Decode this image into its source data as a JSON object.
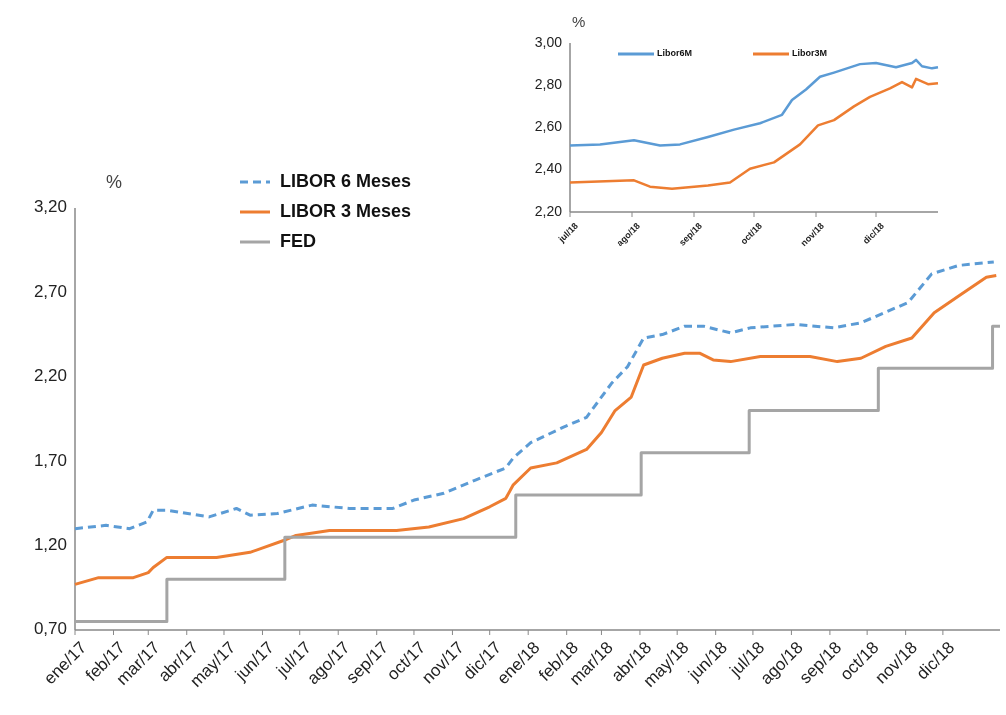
{
  "chart_data": [
    {
      "type": "line",
      "ylabel": "%",
      "xlim": [
        "2017-01-01",
        "2019-01-16"
      ],
      "ylim": [
        0.7,
        3.2
      ],
      "yticks": [
        {
          "value": 0.7,
          "label": "0,70"
        },
        {
          "value": 1.2,
          "label": "1,20"
        },
        {
          "value": 1.7,
          "label": "1,70"
        },
        {
          "value": 2.2,
          "label": "2,20"
        },
        {
          "value": 2.7,
          "label": "2,70"
        },
        {
          "value": 3.2,
          "label": "3,20"
        }
      ],
      "xticks": [
        {
          "value": "2017-01",
          "label": "ene/17"
        },
        {
          "value": "2017-02",
          "label": "feb/17"
        },
        {
          "value": "2017-03",
          "label": "mar/17"
        },
        {
          "value": "2017-04",
          "label": "abr/17"
        },
        {
          "value": "2017-05",
          "label": "may/17"
        },
        {
          "value": "2017-06",
          "label": "jun/17"
        },
        {
          "value": "2017-07",
          "label": "jul/17"
        },
        {
          "value": "2017-08",
          "label": "ago/17"
        },
        {
          "value": "2017-09",
          "label": "sep/17"
        },
        {
          "value": "2017-10",
          "label": "oct/17"
        },
        {
          "value": "2017-11",
          "label": "nov/17"
        },
        {
          "value": "2017-12",
          "label": "dic/17"
        },
        {
          "value": "2018-01",
          "label": "ene/18"
        },
        {
          "value": "2018-02",
          "label": "feb/18"
        },
        {
          "value": "2018-03",
          "label": "mar/18"
        },
        {
          "value": "2018-04",
          "label": "abr/18"
        },
        {
          "value": "2018-05",
          "label": "may/18"
        },
        {
          "value": "2018-06",
          "label": "jun/18"
        },
        {
          "value": "2018-07",
          "label": "jul/18"
        },
        {
          "value": "2018-08",
          "label": "ago/18"
        },
        {
          "value": "2018-09",
          "label": "sep/18"
        },
        {
          "value": "2018-10",
          "label": "oct/18"
        },
        {
          "value": "2018-11",
          "label": "nov/18"
        },
        {
          "value": "2018-12",
          "label": "dic/18"
        }
      ],
      "grid": false,
      "legend": "top",
      "marker": "none",
      "series": [
        {
          "name": "LIBOR 6 Meses",
          "color": "#5b9bd5",
          "line_style": "dashed",
          "x": [
            "2017-01-01",
            "2017-01-26",
            "2017-02-14",
            "2017-02-28",
            "2017-03-05",
            "2017-03-16",
            "2017-04-19",
            "2017-05-11",
            "2017-05-22",
            "2017-06-13",
            "2017-07-11",
            "2017-08-10",
            "2017-09-14",
            "2017-10-01",
            "2017-10-25",
            "2017-11-20",
            "2017-12-14",
            "2017-12-20",
            "2018-01-03",
            "2018-01-29",
            "2018-02-17",
            "2018-03-09",
            "2018-03-22",
            "2018-04-04",
            "2018-04-19",
            "2018-05-07",
            "2018-05-22",
            "2018-06-13",
            "2018-06-29",
            "2018-08-04",
            "2018-09-04",
            "2018-09-26",
            "2018-11-03",
            "2018-11-22",
            "2018-12-14",
            "2019-01-11"
          ],
          "values": [
            1.3,
            1.32,
            1.3,
            1.34,
            1.41,
            1.41,
            1.37,
            1.42,
            1.38,
            1.39,
            1.44,
            1.42,
            1.42,
            1.47,
            1.51,
            1.59,
            1.66,
            1.72,
            1.81,
            1.9,
            1.96,
            2.16,
            2.26,
            2.43,
            2.45,
            2.5,
            2.5,
            2.46,
            2.49,
            2.51,
            2.49,
            2.52,
            2.64,
            2.81,
            2.86,
            2.88
          ]
        },
        {
          "name": "LIBOR 3 Meses",
          "color": "#ed7d31",
          "line_style": "solid",
          "x": [
            "2017-01-01",
            "2017-01-20",
            "2017-02-17",
            "2017-03-01",
            "2017-03-05",
            "2017-03-16",
            "2017-04-25",
            "2017-05-22",
            "2017-06-18",
            "2017-06-28",
            "2017-07-25",
            "2017-09-17",
            "2017-10-13",
            "2017-11-10",
            "2017-12-01",
            "2017-12-14",
            "2017-12-20",
            "2018-01-03",
            "2018-01-24",
            "2018-02-17",
            "2018-03-01",
            "2018-03-12",
            "2018-03-25",
            "2018-04-04",
            "2018-04-19",
            "2018-05-07",
            "2018-05-19",
            "2018-05-30",
            "2018-06-13",
            "2018-07-07",
            "2018-08-16",
            "2018-09-07",
            "2018-09-26",
            "2018-10-16",
            "2018-11-06",
            "2018-11-24",
            "2018-12-14",
            "2019-01-05",
            "2019-01-13"
          ],
          "values": [
            0.97,
            1.01,
            1.01,
            1.04,
            1.07,
            1.13,
            1.13,
            1.16,
            1.23,
            1.26,
            1.29,
            1.29,
            1.31,
            1.36,
            1.43,
            1.48,
            1.56,
            1.66,
            1.69,
            1.77,
            1.87,
            2.0,
            2.08,
            2.27,
            2.31,
            2.34,
            2.34,
            2.3,
            2.29,
            2.32,
            2.32,
            2.29,
            2.31,
            2.38,
            2.43,
            2.58,
            2.68,
            2.79,
            2.8
          ]
        },
        {
          "name": "FED",
          "color": "#a5a5a5",
          "type": "step",
          "line_style": "solid",
          "x": [
            "2017-01-01",
            "2017-03-16",
            "2017-06-19",
            "2017-12-22",
            "2018-04-02",
            "2018-06-28",
            "2018-10-10",
            "2019-01-10",
            "2019-01-16"
          ],
          "values": [
            0.75,
            1.0,
            1.25,
            1.5,
            1.75,
            2.0,
            2.25,
            2.5,
            2.5
          ]
        }
      ]
    },
    {
      "type": "line",
      "ylabel": "%",
      "xlim": [
        "2018-07-01",
        "2019-01-01"
      ],
      "ylim": [
        2.2,
        3.0
      ],
      "yticks": [
        {
          "value": 2.2,
          "label": "2,20"
        },
        {
          "value": 2.4,
          "label": "2,40"
        },
        {
          "value": 2.6,
          "label": "2,60"
        },
        {
          "value": 2.8,
          "label": "2,80"
        },
        {
          "value": 3.0,
          "label": "3,00"
        }
      ],
      "xticks": [
        {
          "value": "2018-07",
          "label": "jul/18"
        },
        {
          "value": "2018-08",
          "label": "ago/18"
        },
        {
          "value": "2018-09",
          "label": "sep/18"
        },
        {
          "value": "2018-10",
          "label": "oct/18"
        },
        {
          "value": "2018-11",
          "label": "nov/18"
        },
        {
          "value": "2018-12",
          "label": "dic/18"
        }
      ],
      "grid": false,
      "legend": "top",
      "marker": "none",
      "series": [
        {
          "name": "Libor6M",
          "color": "#5b9bd5",
          "line_style": "solid",
          "x": [
            "2018-07-01",
            "2018-07-16",
            "2018-08-02",
            "2018-08-15",
            "2018-08-25",
            "2018-09-08",
            "2018-09-21",
            "2018-10-04",
            "2018-10-15",
            "2018-10-20",
            "2018-10-27",
            "2018-11-03",
            "2018-11-10",
            "2018-11-23",
            "2018-12-01",
            "2018-12-11",
            "2018-12-19",
            "2018-12-21",
            "2018-12-24",
            "2018-12-29",
            "2019-01-01"
          ],
          "values": [
            2.515,
            2.52,
            2.54,
            2.515,
            2.52,
            2.555,
            2.59,
            2.62,
            2.66,
            2.73,
            2.78,
            2.84,
            2.86,
            2.9,
            2.905,
            2.885,
            2.905,
            2.92,
            2.89,
            2.88,
            2.885
          ]
        },
        {
          "name": "Libor3M",
          "color": "#ed7d31",
          "line_style": "solid",
          "x": [
            "2018-07-01",
            "2018-08-02",
            "2018-08-10",
            "2018-08-21",
            "2018-09-08",
            "2018-09-19",
            "2018-09-29",
            "2018-10-11",
            "2018-10-24",
            "2018-11-02",
            "2018-11-10",
            "2018-11-20",
            "2018-11-28",
            "2018-12-08",
            "2018-12-14",
            "2018-12-19",
            "2018-12-21",
            "2018-12-27",
            "2019-01-01"
          ],
          "values": [
            2.34,
            2.35,
            2.32,
            2.31,
            2.325,
            2.34,
            2.405,
            2.435,
            2.52,
            2.61,
            2.635,
            2.7,
            2.745,
            2.785,
            2.815,
            2.79,
            2.83,
            2.805,
            2.81
          ]
        }
      ]
    }
  ]
}
